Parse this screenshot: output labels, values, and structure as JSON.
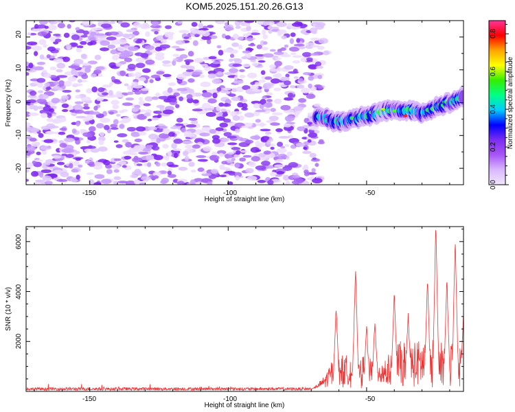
{
  "title": "KOM5.2025.151.20.26.G13",
  "chart_data": [
    {
      "type": "heatmap",
      "xlabel": "Height of straight line (km)",
      "ylabel": "Frequency (Hz)",
      "xlim": [
        -173,
        -15
      ],
      "ylim": [
        -25,
        25
      ],
      "xticks": [
        "-150",
        "-100",
        "-50"
      ],
      "yticks": [
        "20",
        "10",
        "0",
        "-10",
        "-20"
      ],
      "colorbar": {
        "label": "Normalized spectral amplitude",
        "range": [
          0,
          0.87
        ],
        "ticks": [
          "0.0",
          "0.2",
          "0.4",
          "0.6",
          "0.8"
        ],
        "colormap": [
          "#f2e6ff",
          "#d9b8ff",
          "#a855f7",
          "#7c2df0",
          "#0000ff",
          "#00ccff",
          "#00ff88",
          "#33ee00",
          "#ffff00",
          "#ffa500",
          "#ff0000",
          "#ff3399"
        ]
      },
      "noise_region_x": [
        -173,
        -68
      ],
      "signal_track": {
        "x": [
          -68,
          -60,
          -50,
          -40,
          -30,
          -20,
          -15
        ],
        "freq": [
          -4,
          -6,
          -4,
          -2,
          -3,
          0,
          2
        ]
      }
    },
    {
      "type": "line",
      "xlabel": "Height of straight line (km)",
      "ylabel": "SNR (10 * v/v)",
      "xlim": [
        -173,
        -15
      ],
      "ylim": [
        0,
        6600
      ],
      "xticks": [
        "-150",
        "-100",
        "-50"
      ],
      "yticks": [
        "2000",
        "4000",
        "6000"
      ],
      "color": "#ee3333",
      "noise_level": 100,
      "peaks": [
        {
          "x": -61,
          "y": 3300
        },
        {
          "x": -54,
          "y": 4800
        },
        {
          "x": -50,
          "y": 2500
        },
        {
          "x": -47,
          "y": 2700
        },
        {
          "x": -40,
          "y": 3900
        },
        {
          "x": -35,
          "y": 3000
        },
        {
          "x": -28,
          "y": 4400
        },
        {
          "x": -25,
          "y": 6600
        },
        {
          "x": -21,
          "y": 4400
        },
        {
          "x": -18,
          "y": 6000
        },
        {
          "x": -15,
          "y": 3000
        }
      ]
    }
  ]
}
